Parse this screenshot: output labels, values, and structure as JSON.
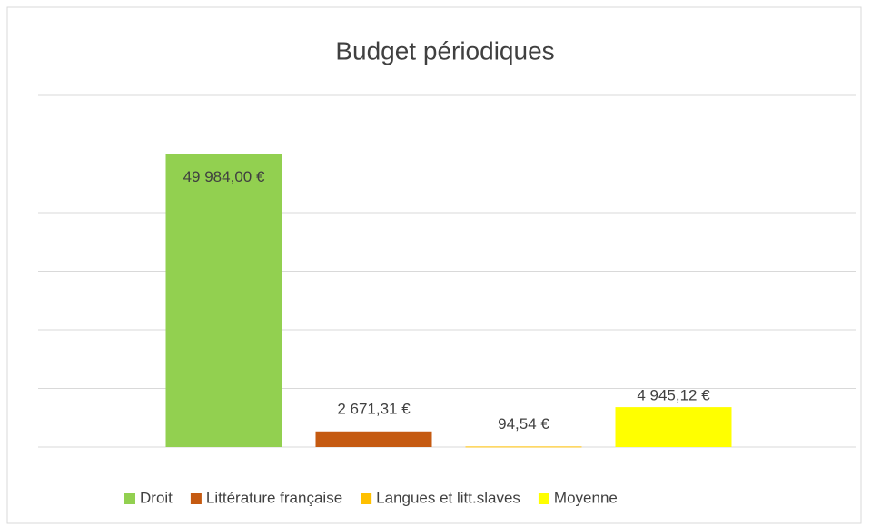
{
  "chart_data": {
    "type": "bar",
    "title": "Budget périodiques",
    "categories": [
      null
    ],
    "series": [
      {
        "name": "Droit",
        "color": "#92d050",
        "values": [
          49984
        ],
        "value_labels": [
          "49 984,00 €"
        ]
      },
      {
        "name": "Littérature française",
        "color": "#c55a11",
        "values": [
          2671.31
        ],
        "value_labels": [
          "2 671,31 €"
        ]
      },
      {
        "name": "Langues et litt.slaves",
        "color": "#ffc000",
        "values": [
          94.54
        ],
        "value_labels": [
          "94,54 €"
        ]
      },
      {
        "name": "Moyenne",
        "color": "#ffff00",
        "values": [
          4945.12
        ],
        "value_labels": [
          "4 945,12 €"
        ]
      }
    ],
    "ylim": [
      0,
      60000
    ],
    "yticks": [
      0,
      10000,
      20000,
      30000,
      40000,
      50000,
      60000
    ],
    "grid": true
  }
}
